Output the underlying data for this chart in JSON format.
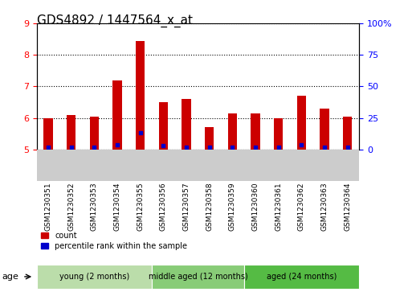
{
  "title": "GDS4892 / 1447564_x_at",
  "samples": [
    "GSM1230351",
    "GSM1230352",
    "GSM1230353",
    "GSM1230354",
    "GSM1230355",
    "GSM1230356",
    "GSM1230357",
    "GSM1230358",
    "GSM1230359",
    "GSM1230360",
    "GSM1230361",
    "GSM1230362",
    "GSM1230363",
    "GSM1230364"
  ],
  "red_values": [
    6.0,
    6.1,
    6.05,
    7.2,
    8.45,
    6.5,
    6.6,
    5.7,
    6.15,
    6.15,
    6.0,
    6.7,
    6.3,
    6.05
  ],
  "blue_percentiles": [
    2,
    2,
    2,
    4,
    13,
    3,
    2,
    2,
    2,
    2,
    2,
    4,
    2,
    2
  ],
  "y_min": 5.0,
  "y_max": 9.0,
  "y_ticks": [
    5,
    6,
    7,
    8,
    9
  ],
  "y2_ticks": [
    0,
    25,
    50,
    75,
    100
  ],
  "bar_color": "#CC0000",
  "dot_color": "#0000CC",
  "groups": [
    {
      "label": "young (2 months)",
      "start": 0,
      "end": 5
    },
    {
      "label": "middle aged (12 months)",
      "start": 5,
      "end": 9
    },
    {
      "label": "aged (24 months)",
      "start": 9,
      "end": 14
    }
  ],
  "group_band_colors": [
    "#bbddaa",
    "#88cc77",
    "#55bb44"
  ],
  "xlabel_age": "age",
  "legend_red": "count",
  "legend_blue": "percentile rank within the sample",
  "bg_color": "#ffffff",
  "sample_area_color": "#cccccc",
  "title_fontsize": 11,
  "tick_fontsize": 8
}
